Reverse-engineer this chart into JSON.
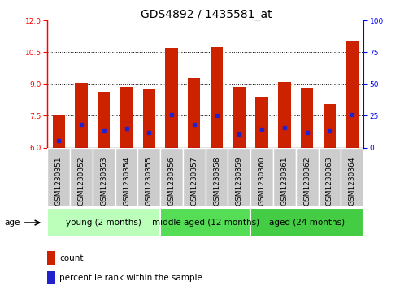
{
  "title": "GDS4892 / 1435581_at",
  "samples": [
    "GSM1230351",
    "GSM1230352",
    "GSM1230353",
    "GSM1230354",
    "GSM1230355",
    "GSM1230356",
    "GSM1230357",
    "GSM1230358",
    "GSM1230359",
    "GSM1230360",
    "GSM1230361",
    "GSM1230362",
    "GSM1230363",
    "GSM1230364"
  ],
  "bar_heights": [
    7.52,
    9.05,
    8.65,
    8.85,
    8.75,
    10.72,
    9.3,
    10.75,
    8.87,
    8.42,
    9.1,
    8.84,
    8.05,
    11.0
  ],
  "blue_positions": [
    6.32,
    7.1,
    6.78,
    6.9,
    6.73,
    7.55,
    7.1,
    7.5,
    6.65,
    6.85,
    6.95,
    6.73,
    6.8,
    7.55
  ],
  "bar_base": 6.0,
  "ylim_left": [
    6.0,
    12.0
  ],
  "ylim_right": [
    0,
    100
  ],
  "yticks_left": [
    6,
    7.5,
    9,
    10.5,
    12
  ],
  "yticks_right": [
    0,
    25,
    50,
    75,
    100
  ],
  "bar_color": "#cc2200",
  "blue_color": "#2222cc",
  "group_labels": [
    "young (2 months)",
    "middle aged (12 months)",
    "aged (24 months)"
  ],
  "group_starts": [
    0,
    5,
    9
  ],
  "group_ends": [
    5,
    9,
    14
  ],
  "group_colors": [
    "#bbffbb",
    "#55dd55",
    "#44cc44"
  ],
  "age_label": "age",
  "legend_count": "count",
  "legend_percentile": "percentile rank within the sample",
  "bar_width": 0.55,
  "title_fontsize": 10,
  "tick_fontsize": 6.5,
  "label_fontsize": 7.5,
  "group_fontsize": 7.5,
  "sample_bg_color": "#cccccc",
  "plot_bg_color": "#ffffff",
  "fig_bg_color": "#ffffff"
}
